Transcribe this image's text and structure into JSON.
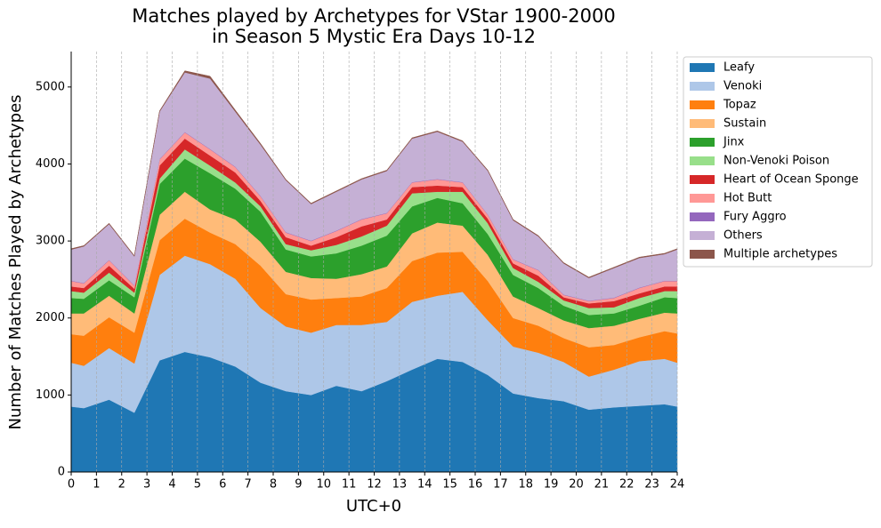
{
  "chart_data": {
    "type": "stacked-area",
    "title": [
      "Matches played by Archetypes for VStar 1900-2000",
      "in Season 5 Mystic Era Days 10-12"
    ],
    "x_label": "UTC+0",
    "y_label": "Number of Matches Played by Archetypes",
    "x": [
      0,
      0.5,
      1.5,
      2.5,
      3.5,
      4.5,
      5.5,
      6.5,
      7.5,
      8.5,
      9.5,
      10.5,
      11.5,
      12.5,
      13.5,
      14.5,
      15.5,
      16.5,
      17.5,
      18.5,
      19.5,
      20.5,
      21.5,
      22.5,
      23.5,
      24
    ],
    "xlim": [
      0,
      24
    ],
    "xticks": [
      0,
      1,
      2,
      3,
      4,
      5,
      6,
      7,
      8,
      9,
      10,
      11,
      12,
      13,
      14,
      15,
      16,
      17,
      18,
      19,
      20,
      21,
      22,
      23,
      24
    ],
    "ylim": [
      0,
      5460
    ],
    "yticks": [
      0,
      1000,
      2000,
      3000,
      4000,
      5000
    ],
    "x_grid": true,
    "legend": "outside-upper-right",
    "series": [
      {
        "name": "Leafy",
        "color": "#1f77b4",
        "values": [
          850,
          830,
          940,
          770,
          1450,
          1560,
          1490,
          1370,
          1160,
          1050,
          1000,
          1120,
          1050,
          1180,
          1330,
          1470,
          1430,
          1260,
          1020,
          960,
          920,
          810,
          840,
          860,
          880,
          850
        ]
      },
      {
        "name": "Venoki",
        "color": "#aec7e8",
        "values": [
          570,
          550,
          670,
          640,
          1110,
          1250,
          1210,
          1140,
          970,
          840,
          810,
          790,
          860,
          770,
          880,
          820,
          910,
          710,
          610,
          590,
          510,
          430,
          490,
          580,
          590,
          570
        ]
      },
      {
        "name": "Topaz",
        "color": "#ff7f0e",
        "values": [
          370,
          390,
          400,
          400,
          450,
          480,
          410,
          450,
          550,
          420,
          430,
          350,
          370,
          440,
          530,
          560,
          520,
          510,
          370,
          350,
          310,
          380,
          320,
          310,
          360,
          380
        ]
      },
      {
        "name": "Sustain",
        "color": "#ffbb78",
        "values": [
          270,
          290,
          280,
          250,
          330,
          350,
          300,
          320,
          310,
          290,
          280,
          250,
          290,
          280,
          360,
          390,
          340,
          340,
          280,
          230,
          230,
          250,
          250,
          240,
          240,
          260
        ]
      },
      {
        "name": "Jinx",
        "color": "#2ca02c",
        "values": [
          200,
          190,
          200,
          210,
          400,
          430,
          470,
          400,
          390,
          290,
          280,
          330,
          370,
          400,
          350,
          320,
          290,
          270,
          280,
          260,
          190,
          170,
          160,
          170,
          200,
          200
        ]
      },
      {
        "name": "Non-Venoki Poison",
        "color": "#98df8a",
        "values": [
          90,
          80,
          100,
          60,
          70,
          120,
          100,
          80,
          70,
          70,
          80,
          110,
          120,
          130,
          170,
          80,
          150,
          140,
          90,
          80,
          70,
          90,
          80,
          100,
          80,
          90
        ]
      },
      {
        "name": "Heart of Ocean Sponge",
        "color": "#d62728",
        "values": [
          60,
          60,
          90,
          50,
          170,
          140,
          130,
          130,
          70,
          90,
          60,
          100,
          130,
          80,
          80,
          80,
          60,
          60,
          60,
          80,
          40,
          60,
          80,
          60,
          60,
          60
        ]
      },
      {
        "name": "Hot Butt",
        "color": "#ff9896",
        "values": [
          70,
          60,
          70,
          40,
          80,
          80,
          80,
          70,
          60,
          60,
          60,
          80,
          90,
          80,
          60,
          80,
          60,
          50,
          50,
          70,
          30,
          30,
          40,
          70,
          70,
          70
        ]
      },
      {
        "name": "Fury Aggro",
        "color": "#9467bd",
        "values": [
          5,
          5,
          5,
          5,
          5,
          5,
          5,
          5,
          5,
          5,
          5,
          5,
          5,
          5,
          5,
          5,
          5,
          5,
          5,
          5,
          5,
          5,
          5,
          5,
          5,
          5
        ]
      },
      {
        "name": "Others",
        "color": "#c5b0d5",
        "values": [
          405,
          475,
          465,
          375,
          615,
          775,
          915,
          715,
          665,
          675,
          475,
          505,
          515,
          545,
          565,
          615,
          525,
          565,
          505,
          435,
          405,
          295,
          385,
          385,
          345,
          405
        ]
      },
      {
        "name": "Multiple archetypes",
        "color": "#8c564b",
        "values": [
          10,
          10,
          10,
          10,
          10,
          20,
          30,
          20,
          15,
          10,
          10,
          10,
          10,
          10,
          10,
          10,
          10,
          10,
          10,
          10,
          10,
          10,
          10,
          10,
          10,
          10
        ]
      }
    ]
  }
}
